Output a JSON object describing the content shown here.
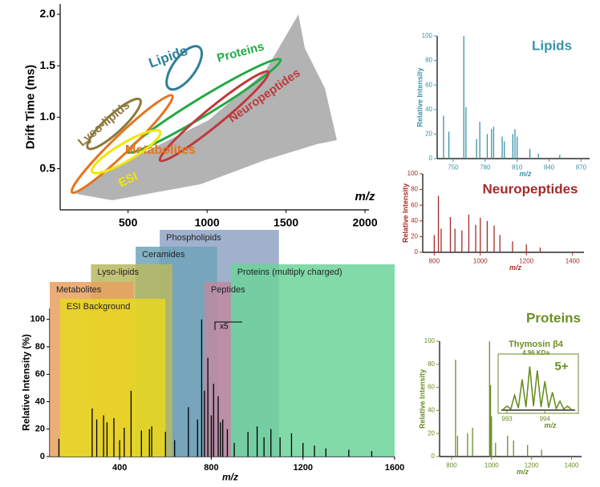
{
  "chart_data": [
    {
      "type": "drift",
      "x_label": "m/z",
      "y_label": "Drift Time (ms)",
      "xlim": [
        70,
        2025
      ],
      "ylim": [
        0.1,
        2.1
      ],
      "xticks": [
        500,
        1000,
        1500,
        2000
      ],
      "yticks": [
        0.5,
        {
          "value": 1,
          "label": "1.0"
        },
        1.5,
        {
          "value": 2,
          "label": "2.0"
        }
      ],
      "regions": [
        {
          "label": "Lipids",
          "color": "#2f7f99",
          "x": [
            760,
            950
          ],
          "y": [
            1.28,
            1.68
          ]
        },
        {
          "label": "Proteins",
          "color": "#22aa44",
          "x": [
            500,
            1465
          ],
          "y": [
            0.66,
            1.56
          ]
        },
        {
          "label": "Lyso-lipids",
          "color": "#8c7a3c",
          "x": [
            246,
            576
          ],
          "y": [
            0.7,
            1.17
          ]
        },
        {
          "label": "Neuropeptides",
          "color": "#c0393b",
          "x": [
            703,
            1388
          ],
          "y": [
            0.58,
            1.44
          ]
        },
        {
          "label": "Metabolites",
          "color": "#e5741e",
          "x": [
            145,
            780
          ],
          "y": [
            0.27,
            1.21
          ]
        },
        {
          "label": "ESI",
          "color": "#f2e600",
          "x": [
            272,
            703
          ],
          "y": [
            0.47,
            0.86
          ]
        }
      ]
    },
    {
      "type": "spectrum",
      "x_label": "m/z",
      "y_label": "Relative Intensity (%)",
      "color": "#000000",
      "xlim": [
        95,
        1600
      ],
      "ylim": [
        0,
        108
      ],
      "xticks": [
        400,
        800,
        1200,
        1600
      ],
      "yticks": [
        0,
        20,
        40,
        60,
        80,
        100
      ],
      "annotation": "x5",
      "bands": [
        {
          "label": "Phospholipids",
          "color": "#8fa3c4",
          "x": [
            575,
            1095
          ]
        },
        {
          "label": "Ceramides",
          "color": "#6fa3b8",
          "x": [
            470,
            825
          ]
        },
        {
          "label": "Lyso-lipids",
          "color": "#b8b860",
          "x": [
            275,
            630
          ]
        },
        {
          "label": "Proteins (multiply charged)",
          "color": "#6cd39a",
          "x": [
            885,
            1600
          ]
        },
        {
          "label": "Metabolites",
          "color": "#e8a060",
          "x": [
            95,
            460
          ]
        },
        {
          "label": "Peptides",
          "color": "#c08aa0",
          "x": [
            770,
            885
          ]
        },
        {
          "label": "ESI Background",
          "color": "#e8d820",
          "x": [
            140,
            600
          ]
        }
      ],
      "x": [
        135,
        280,
        300,
        330,
        345,
        375,
        400,
        420,
        450,
        495,
        530,
        540,
        600,
        640,
        700,
        740,
        758,
        770,
        785,
        800,
        810,
        830,
        840,
        850,
        870,
        900,
        960,
        1000,
        1030,
        1060,
        1100,
        1150,
        1200,
        1250,
        1300,
        1400,
        1500
      ],
      "values": [
        13,
        35,
        27,
        30,
        25,
        28,
        12,
        21,
        48,
        19,
        20,
        22,
        18,
        12,
        36,
        27,
        100,
        48,
        72,
        30,
        53,
        44,
        25,
        27,
        20,
        10,
        18,
        22,
        14,
        20,
        14,
        17,
        10,
        8,
        6,
        5,
        4
      ]
    },
    {
      "type": "spectrum",
      "title": "Lipids",
      "color": "#3a93a8",
      "x_label": "m/z",
      "y_label": "Relative Intensity",
      "xlim": [
        735,
        878
      ],
      "ylim": [
        0,
        100
      ],
      "xticks": [
        750,
        780,
        810,
        840,
        870
      ],
      "yticks": [
        0,
        20,
        40,
        60,
        80,
        100
      ],
      "x": [
        741,
        746,
        760,
        762,
        772,
        775,
        782,
        786,
        788,
        796,
        798,
        806,
        808,
        810,
        822,
        830,
        850
      ],
      "values": [
        35,
        22,
        100,
        42,
        16,
        30,
        20,
        24,
        26,
        18,
        14,
        20,
        24,
        18,
        8,
        4,
        3
      ]
    },
    {
      "type": "spectrum",
      "title": "Neuropeptides",
      "color": "#a52a2a",
      "x_label": "m/z",
      "y_label": "Relative Intensity",
      "xlim": [
        750,
        1450
      ],
      "ylim": [
        0,
        100
      ],
      "xticks": [
        800,
        1000,
        1200,
        1400
      ],
      "yticks": [
        0,
        20,
        40,
        60,
        80,
        100
      ],
      "x": [
        800,
        818,
        830,
        870,
        890,
        920,
        950,
        980,
        1000,
        1030,
        1060,
        1085,
        1140,
        1200,
        1260
      ],
      "values": [
        22,
        72,
        30,
        45,
        30,
        28,
        48,
        35,
        44,
        40,
        34,
        22,
        14,
        10,
        6
      ]
    },
    {
      "type": "spectrum",
      "title": "Proteins",
      "color": "#6b8e23",
      "x_label": "m/z",
      "y_label": "Relative Intensity",
      "xlim": [
        740,
        1450
      ],
      "ylim": [
        0,
        100
      ],
      "xticks": [
        800,
        1000,
        1200,
        1400
      ],
      "yticks": [
        0,
        20,
        40,
        60,
        80,
        100
      ],
      "x": [
        820,
        830,
        880,
        905,
        990,
        995,
        1000,
        1020,
        1080,
        1110,
        1180,
        1250
      ],
      "values": [
        84,
        18,
        20,
        25,
        100,
        62,
        35,
        12,
        18,
        14,
        10,
        6
      ]
    },
    {
      "type": "inset",
      "title": "Thymosin β4",
      "subtitle": "4.96 KDa",
      "annotation": "5+",
      "color": "#6b8e23",
      "x_label": "m/z",
      "xlim": [
        992.85,
        994.8
      ],
      "ylim": [
        0,
        100
      ],
      "xticks": [
        993,
        994
      ],
      "x": [
        992.9,
        993.0,
        993.1,
        993.2,
        993.3,
        993.4,
        993.5,
        993.6,
        993.7,
        993.8,
        993.9,
        994.0,
        994.1,
        994.2,
        994.3,
        994.4,
        994.5,
        994.6,
        994.7
      ],
      "values": [
        2,
        8,
        2,
        30,
        4,
        62,
        6,
        88,
        8,
        80,
        6,
        58,
        5,
        36,
        3,
        18,
        2,
        8,
        1
      ]
    }
  ]
}
